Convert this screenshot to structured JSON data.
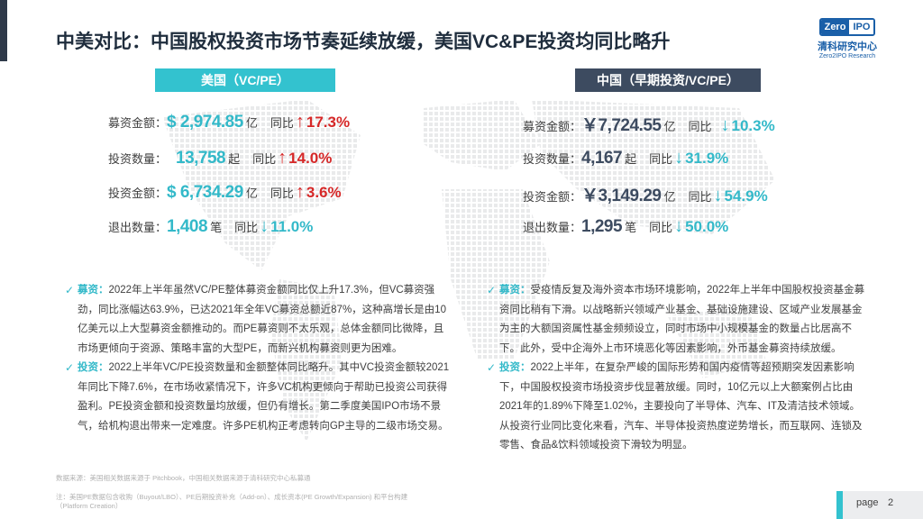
{
  "title": "中美对比：中国股权投资市场节奏延续放缓，美国VC&PE投资均同比略升",
  "logo": {
    "badge_left": "Zero",
    "badge_right": "IPO",
    "name_cn": "清科研究中心",
    "name_en": "Zero2IPO Research"
  },
  "us": {
    "header": "美国（VC/PE）",
    "rows": [
      {
        "label": "募资金额：",
        "value": "$ 2,974.85",
        "unit": "亿",
        "compare": "同比",
        "direction": "up",
        "pct": "17.3%"
      },
      {
        "label": "投资数量：",
        "value": "13,758",
        "unit": "起",
        "compare": "同比",
        "direction": "up",
        "pct": "14.0%"
      },
      {
        "label": "投资金额：",
        "value": "$ 6,734.29",
        "unit": "亿",
        "compare": "同比",
        "direction": "up",
        "pct": "3.6%"
      },
      {
        "label": "退出数量：",
        "value": "1,408",
        "unit": "笔",
        "compare": "同比",
        "direction": "down",
        "pct": "11.0%"
      }
    ]
  },
  "cn": {
    "header": "中国（早期投资/VC/PE）",
    "rows": [
      {
        "label": "募资金额：",
        "value": "￥7,724.55",
        "unit": "亿",
        "compare": "同比",
        "direction": "down",
        "pct": "10.3%"
      },
      {
        "label": "投资数量：",
        "value": "4,167",
        "unit": "起",
        "compare": "同比",
        "direction": "down",
        "pct": "31.9%"
      },
      {
        "label": "投资金额：",
        "value": "￥3,149.29",
        "unit": "亿",
        "compare": "同比",
        "direction": "down",
        "pct": "54.9%"
      },
      {
        "label": "退出数量：",
        "value": "1,295",
        "unit": "笔",
        "compare": "同比",
        "direction": "down",
        "pct": "50.0%"
      }
    ]
  },
  "left_text": {
    "p1_kw": "募资：",
    "p1": "2022年上半年虽然VC/PE整体募资金额同比仅上升17.3%，但VC募资强劲，同比涨幅达63.9%，已达2021年全年VC募资总额近87%，这种高增长是由10亿美元以上大型募资金额推动的。而PE募资则不太乐观，总体金额同比微降，且市场更倾向于资源、策略丰富的大型PE，而新兴机构募资则更为困难。",
    "p2_kw": "投资：",
    "p2": "2022上半年VC/PE投资数量和金额整体同比略升。其中VC投资金额较2021年同比下降7.6%，在市场收紧情况下，许多VC机构更倾向于帮助已投资公司获得盈利。PE投资金额和投资数量均放缓，但仍有增长。第二季度美国IPO市场不景气，给机构退出带来一定难度。许多PE机构正考虑转向GP主导的二级市场交易。"
  },
  "right_text": {
    "p1_kw": "募资：",
    "p1": "受疫情反复及海外资本市场环境影响，2022年上半年中国股权投资基金募资同比稍有下滑。以战略新兴领域产业基金、基础设施建设、区域产业发展基金为主的大额国资属性基金频频设立，同时市场中小规模基金的数量占比居高不下。此外，受中企海外上市环境恶化等因素影响，外币基金募资持续放缓。",
    "p2_kw": "投资：",
    "p2": "2022上半年，在复杂严峻的国际形势和国内疫情等超预期突发因素影响下，中国股权投资市场投资步伐显著放缓。同时，10亿元以上大额案例占比由2021年的1.89%下降至1.02%，主要投向了半导体、汽车、IT及清洁技术领域。从投资行业同比变化来看，汽车、半导体投资热度逆势增长，而互联网、连锁及零售、食品&饮料领域投资下滑较为明显。"
  },
  "footnotes": {
    "source": "数据来源：美国相关数据来源于 Pitchbook，中国相关数据来源于清科研究中心私募通",
    "note": "注：美国PE数据包含收购（Buyout/LBO）、PE后期投资补充（Add-on）、成长资本(PE Growth/Expansion) 和平台构建（Platform Creation）"
  },
  "page": {
    "label": "page",
    "number": "2"
  },
  "colors": {
    "teal": "#33c2cf",
    "navy": "#3d4b60",
    "red": "#d62828"
  }
}
